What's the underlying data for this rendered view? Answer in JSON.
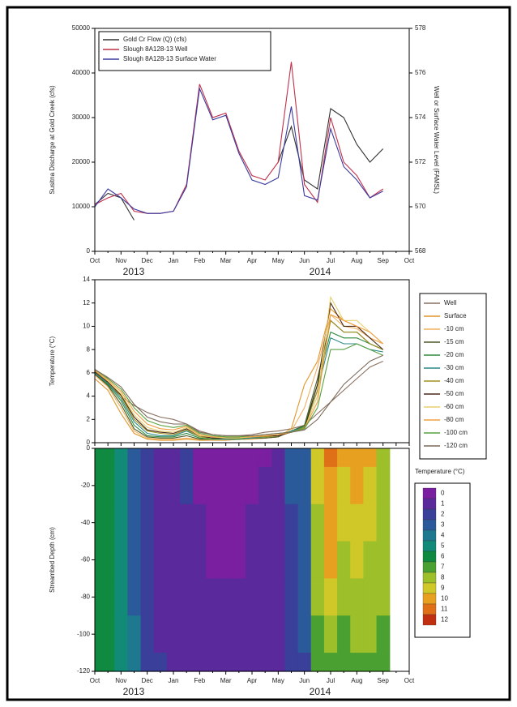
{
  "chart_data": [
    {
      "type": "line",
      "categories": [
        "Oct",
        null,
        "Nov",
        null,
        "Dec",
        null,
        "Jan",
        null,
        "Feb",
        null,
        "Mar",
        null,
        "Apr",
        null,
        "May",
        null,
        "Jun",
        null,
        "Jul",
        null,
        "Aug",
        null,
        "Sep",
        null,
        "Oct"
      ],
      "annotations": [
        "2013",
        "2014"
      ],
      "ylabel": "Susitna Discharge at Gold Creek (cfs)",
      "y2label": "Well or Surface Water Level (FAMSL)",
      "ylim": [
        0,
        50000
      ],
      "yticks": [
        0,
        10000,
        20000,
        30000,
        40000,
        50000
      ],
      "y2lim": [
        568,
        578
      ],
      "y2ticks": [
        568,
        570,
        572,
        574,
        576,
        578
      ],
      "legend": "upper left",
      "series": [
        {
          "name": "Gold Cr Flow (Q) (cfs)",
          "color": "#333333",
          "values": [
            10500,
            13000,
            12000,
            7000,
            null,
            null,
            null,
            null,
            null,
            null,
            null,
            null,
            null,
            null,
            20000,
            28000,
            16000,
            14000,
            32000,
            30000,
            24000,
            20000,
            23000,
            null,
            null
          ]
        },
        {
          "name": "Slough 8A128-13 Well",
          "color": "#c0304a",
          "axis": "y2",
          "values": [
            570.1,
            570.4,
            570.6,
            569.8,
            569.7,
            569.7,
            569.8,
            571.0,
            575.5,
            574.0,
            574.2,
            572.5,
            571.4,
            571.2,
            572.0,
            576.5,
            571.0,
            570.2,
            574.0,
            572.0,
            571.4,
            570.4,
            570.8,
            null,
            null
          ]
        },
        {
          "name": "Slough 8A128-13 Surface Water",
          "color": "#3a3aa0",
          "axis": "y2",
          "values": [
            570.0,
            570.8,
            570.4,
            569.9,
            569.7,
            569.7,
            569.8,
            570.9,
            575.3,
            573.9,
            574.1,
            572.4,
            571.2,
            571.0,
            571.3,
            574.5,
            570.5,
            570.3,
            573.5,
            571.8,
            571.2,
            570.4,
            570.7,
            null,
            null
          ]
        }
      ]
    },
    {
      "type": "line",
      "ylabel": "Temperature (°C)",
      "ylim": [
        0,
        14
      ],
      "yticks": [
        0,
        2,
        4,
        6,
        8,
        10,
        12,
        14
      ],
      "legend": "outside right",
      "series": [
        {
          "name": "Well",
          "color": "#8a7060",
          "values": [
            6.0,
            5.0,
            4.0,
            3.2,
            2.6,
            2.2,
            2.0,
            1.6,
            1.0,
            0.7,
            0.6,
            0.6,
            0.7,
            0.9,
            1.0,
            1.2,
            1.5,
            2.5,
            3.5,
            4.5,
            5.5,
            6.5,
            7.0,
            null,
            null
          ]
        },
        {
          "name": "Surface",
          "color": "#e0962a",
          "values": [
            5.5,
            4.5,
            2.5,
            0.8,
            0.3,
            0.2,
            0.2,
            0.3,
            0.2,
            0.2,
            0.2,
            0.3,
            0.3,
            0.4,
            0.5,
            1.2,
            5.0,
            7.0,
            11.5,
            10.5,
            10.0,
            9.0,
            8.5,
            null,
            null
          ]
        },
        {
          "name": "-10 cm",
          "color": "#f0b060",
          "values": [
            5.8,
            4.8,
            3.0,
            1.0,
            0.4,
            0.3,
            0.3,
            0.4,
            0.3,
            0.2,
            0.2,
            0.3,
            0.3,
            0.4,
            0.5,
            1.0,
            3.0,
            6.5,
            11.0,
            10.0,
            9.8,
            9.0,
            8.5,
            null,
            null
          ]
        },
        {
          "name": "-15 cm",
          "color": "#4a5a2a",
          "values": [
            5.9,
            4.9,
            3.3,
            1.2,
            0.5,
            0.4,
            0.4,
            0.6,
            0.3,
            0.3,
            0.3,
            0.3,
            0.4,
            0.4,
            0.5,
            1.0,
            1.5,
            5.5,
            10.5,
            9.5,
            9.5,
            8.5,
            8.0,
            null,
            null
          ]
        },
        {
          "name": "-20 cm",
          "color": "#2e8a3a",
          "values": [
            6.0,
            5.0,
            3.6,
            1.5,
            0.6,
            0.5,
            0.5,
            0.8,
            0.4,
            0.3,
            0.3,
            0.3,
            0.4,
            0.5,
            0.6,
            1.0,
            1.4,
            5.0,
            9.5,
            9.0,
            9.0,
            8.5,
            8.0,
            null,
            null
          ]
        },
        {
          "name": "-30 cm",
          "color": "#2a8a8a",
          "values": [
            6.0,
            5.1,
            3.8,
            1.8,
            0.8,
            0.6,
            0.6,
            1.0,
            0.5,
            0.4,
            0.3,
            0.4,
            0.4,
            0.5,
            0.6,
            1.0,
            1.3,
            4.5,
            9.0,
            8.5,
            8.5,
            8.0,
            7.8,
            null,
            null
          ]
        },
        {
          "name": "-40 cm",
          "color": "#a09020",
          "values": [
            6.1,
            5.2,
            4.0,
            2.0,
            1.0,
            0.8,
            0.7,
            1.1,
            0.5,
            0.4,
            0.4,
            0.4,
            0.5,
            0.5,
            0.6,
            0.9,
            1.3,
            4.5,
            10.5,
            9.5,
            9.5,
            8.5,
            8.0,
            null,
            null
          ]
        },
        {
          "name": "-50 cm",
          "color": "#4a2a1a",
          "values": [
            6.1,
            5.2,
            4.1,
            2.2,
            1.1,
            0.9,
            0.8,
            1.2,
            0.6,
            0.4,
            0.4,
            0.4,
            0.5,
            0.6,
            0.6,
            0.9,
            1.2,
            5.0,
            12.0,
            10.0,
            10.0,
            9.0,
            8.0,
            null,
            null
          ]
        },
        {
          "name": "-60 cm",
          "color": "#e8d070",
          "values": [
            6.2,
            5.3,
            4.2,
            2.4,
            1.3,
            1.0,
            0.9,
            1.3,
            0.6,
            0.5,
            0.4,
            0.4,
            0.5,
            0.6,
            0.7,
            0.9,
            1.2,
            4.0,
            12.5,
            10.5,
            10.5,
            9.5,
            8.5,
            null,
            null
          ]
        },
        {
          "name": "-80 cm",
          "color": "#f0a040",
          "values": [
            6.2,
            5.4,
            4.4,
            2.7,
            1.6,
            1.2,
            1.1,
            1.4,
            0.7,
            0.5,
            0.5,
            0.5,
            0.5,
            0.6,
            0.7,
            0.9,
            1.2,
            3.5,
            11.0,
            10.5,
            10.0,
            9.5,
            8.5,
            null,
            null
          ]
        },
        {
          "name": "-100 cm",
          "color": "#5aa040",
          "values": [
            6.3,
            5.5,
            4.6,
            3.0,
            1.9,
            1.5,
            1.3,
            1.5,
            0.8,
            0.6,
            0.5,
            0.5,
            0.6,
            0.7,
            0.8,
            0.9,
            1.2,
            3.0,
            8.0,
            8.0,
            8.5,
            8.0,
            7.5,
            null,
            null
          ]
        },
        {
          "name": "-120 cm",
          "color": "#7a6a5a",
          "values": [
            6.3,
            5.6,
            4.8,
            3.3,
            2.2,
            1.8,
            1.6,
            1.6,
            0.9,
            0.7,
            0.6,
            0.6,
            0.6,
            0.7,
            0.8,
            0.9,
            1.1,
            2.0,
            3.5,
            5.0,
            6.0,
            7.0,
            7.5,
            null,
            null
          ]
        }
      ]
    },
    {
      "type": "heatmap",
      "categories": [
        "Oct",
        null,
        "Nov",
        null,
        "Dec",
        null,
        "Jan",
        null,
        "Feb",
        null,
        "Mar",
        null,
        "Apr",
        null,
        "May",
        null,
        "Jun",
        null,
        "Jul",
        null,
        "Aug",
        null,
        "Sep",
        null,
        "Oct"
      ],
      "annotations": [
        "2013",
        "2014"
      ],
      "ylabel": "Streambed Depth (cm)",
      "ylim": [
        -120,
        0
      ],
      "yticks": [
        -120,
        -100,
        -80,
        -60,
        -40,
        -20,
        0
      ],
      "y": [
        0,
        -20,
        -40,
        -60,
        -80,
        -100,
        -120
      ],
      "z": [
        [
          6,
          5.5,
          4.5,
          3,
          1.5,
          0.5,
          0.5,
          1.5,
          0.3,
          0.3,
          0.3,
          0.3,
          0.4,
          0.4,
          0.6,
          2.5,
          3,
          9,
          11,
          10,
          10,
          9.5,
          8,
          null,
          null
        ],
        [
          6,
          5.5,
          4.5,
          3,
          1.5,
          0.6,
          0.6,
          1.5,
          0.4,
          0.3,
          0.3,
          0.3,
          0.4,
          0.5,
          0.7,
          2.5,
          3,
          8.5,
          10,
          9,
          9.5,
          9,
          8,
          null,
          null
        ],
        [
          6,
          5.6,
          4.6,
          3.1,
          1.6,
          0.8,
          0.7,
          1.4,
          0.5,
          0.4,
          0.4,
          0.4,
          0.5,
          0.5,
          0.8,
          2.4,
          2.8,
          8,
          9.5,
          8.5,
          9,
          8.5,
          7.8,
          null,
          null
        ],
        [
          6.1,
          5.7,
          4.7,
          3.2,
          1.7,
          0.9,
          0.8,
          1.3,
          0.6,
          0.4,
          0.4,
          0.4,
          0.5,
          0.6,
          0.9,
          2.3,
          2.7,
          7.5,
          10,
          8,
          8.5,
          8,
          7.5,
          null,
          null
        ],
        [
          6.2,
          5.8,
          4.8,
          3.3,
          1.8,
          1.0,
          0.9,
          1.3,
          0.7,
          0.5,
          0.5,
          0.5,
          0.6,
          0.7,
          1.0,
          2.2,
          2.6,
          7.5,
          9,
          7.5,
          8,
          8,
          7.5,
          null,
          null
        ],
        [
          6.2,
          5.9,
          5.0,
          3.5,
          2.0,
          1.2,
          1.0,
          1.3,
          0.8,
          0.6,
          0.5,
          0.5,
          0.6,
          0.7,
          1.0,
          2.0,
          2.5,
          7,
          8,
          7,
          7.5,
          7.5,
          7.2,
          null,
          null
        ],
        [
          6.3,
          6.0,
          5.2,
          3.8,
          2.2,
          1.5,
          1.2,
          1.4,
          0.9,
          0.7,
          0.6,
          0.6,
          0.7,
          0.8,
          1.1,
          2.0,
          2.4,
          6.5,
          7,
          6.5,
          7,
          7,
          7,
          null,
          null
        ]
      ],
      "colorbar": {
        "title": "Temperature (°C)",
        "ticks": [
          0,
          1,
          2,
          3,
          4,
          5,
          6,
          7,
          8,
          9,
          10,
          11,
          12
        ],
        "colors": [
          "#7a1fa0",
          "#5a2a9c",
          "#3a3f9a",
          "#2a5a9a",
          "#1d7890",
          "#128a78",
          "#0f8a40",
          "#4aa030",
          "#9cbf2a",
          "#d0c828",
          "#e8a020",
          "#e07018",
          "#c03010"
        ]
      }
    }
  ]
}
